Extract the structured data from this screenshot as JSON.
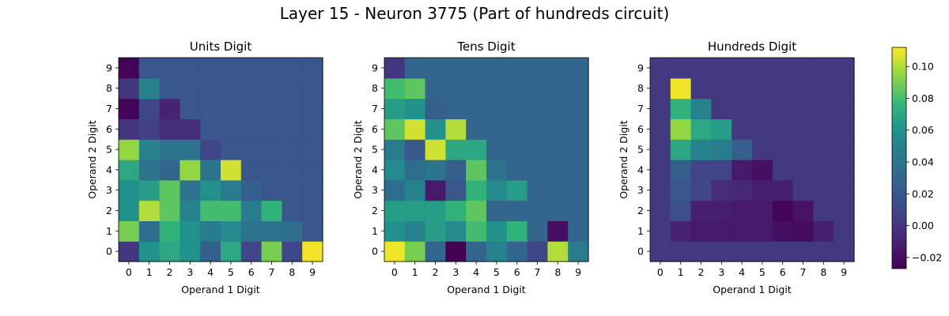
{
  "figure": {
    "title": "Layer 15 - Neuron 3775 (Part of hundreds circuit)"
  },
  "chart_data": [
    {
      "type": "heatmap",
      "title": "Units Digit",
      "xlabel": "Operand 1 Digit",
      "ylabel": "Operand 2 Digit",
      "x_ticks": [
        "0",
        "1",
        "2",
        "3",
        "4",
        "5",
        "6",
        "7",
        "8",
        "9"
      ],
      "y_ticks": [
        "0",
        "1",
        "2",
        "3",
        "4",
        "5",
        "6",
        "7",
        "8",
        "9"
      ],
      "origin": "lower",
      "colormap": "viridis",
      "vmin": -0.027,
      "vmax": 0.112,
      "z_rows_y0_to_y9": [
        [
          0.0,
          0.06,
          0.07,
          0.06,
          0.025,
          0.07,
          0.01,
          0.09,
          0.01,
          0.11
        ],
        [
          0.09,
          0.035,
          0.075,
          0.06,
          0.045,
          0.055,
          0.04,
          0.04,
          0.035,
          0.02
        ],
        [
          0.06,
          0.1,
          0.085,
          0.05,
          0.08,
          0.08,
          0.045,
          0.075,
          0.02,
          0.02
        ],
        [
          0.06,
          0.065,
          0.085,
          0.04,
          0.06,
          0.045,
          0.025,
          0.02,
          0.02,
          0.02
        ],
        [
          0.07,
          0.04,
          0.03,
          0.095,
          0.04,
          0.105,
          0.02,
          0.02,
          0.02,
          0.02
        ],
        [
          0.095,
          0.05,
          0.04,
          0.04,
          0.01,
          0.02,
          0.02,
          0.02,
          0.02,
          0.02
        ],
        [
          0.0,
          0.005,
          -0.005,
          -0.005,
          0.02,
          0.02,
          0.02,
          0.02,
          0.02,
          0.02
        ],
        [
          -0.025,
          0.01,
          -0.01,
          0.02,
          0.02,
          0.02,
          0.02,
          0.02,
          0.02,
          0.02
        ],
        [
          0.0,
          0.05,
          0.02,
          0.02,
          0.02,
          0.02,
          0.02,
          0.02,
          0.02,
          0.02
        ],
        [
          -0.025,
          0.02,
          0.02,
          0.02,
          0.02,
          0.02,
          0.02,
          0.02,
          0.02,
          0.02
        ]
      ]
    },
    {
      "type": "heatmap",
      "title": "Tens Digit",
      "xlabel": "Operand 1 Digit",
      "ylabel": "Operand 2 Digit",
      "x_ticks": [
        "0",
        "1",
        "2",
        "3",
        "4",
        "5",
        "6",
        "7",
        "8",
        "9"
      ],
      "y_ticks": [
        "0",
        "1",
        "2",
        "3",
        "4",
        "5",
        "6",
        "7",
        "8",
        "9"
      ],
      "origin": "lower",
      "colormap": "viridis",
      "vmin": -0.027,
      "vmax": 0.112,
      "z_rows_y0_to_y9": [
        [
          0.11,
          0.09,
          0.03,
          -0.027,
          0.03,
          0.05,
          0.03,
          0.01,
          0.1,
          0.045
        ],
        [
          0.06,
          0.05,
          0.065,
          0.055,
          0.08,
          0.06,
          0.075,
          0.03,
          -0.02,
          0.03
        ],
        [
          0.065,
          0.065,
          0.065,
          0.075,
          0.085,
          0.03,
          0.03,
          0.03,
          0.03,
          0.03
        ],
        [
          0.035,
          0.05,
          -0.015,
          0.02,
          0.075,
          0.055,
          0.065,
          0.03,
          0.03,
          0.03
        ],
        [
          0.055,
          0.035,
          0.04,
          0.025,
          0.085,
          0.04,
          0.03,
          0.03,
          0.03,
          0.03
        ],
        [
          0.045,
          0.02,
          0.105,
          0.07,
          0.07,
          0.03,
          0.03,
          0.03,
          0.03,
          0.03
        ],
        [
          0.085,
          0.105,
          0.06,
          0.1,
          0.03,
          0.03,
          0.03,
          0.03,
          0.03,
          0.03
        ],
        [
          0.065,
          0.06,
          0.025,
          0.03,
          0.03,
          0.03,
          0.03,
          0.03,
          0.03,
          0.03
        ],
        [
          0.08,
          0.085,
          0.03,
          0.03,
          0.03,
          0.03,
          0.03,
          0.03,
          0.03,
          0.03
        ],
        [
          0.0,
          0.03,
          0.03,
          0.03,
          0.03,
          0.03,
          0.03,
          0.03,
          0.03,
          0.03
        ]
      ]
    },
    {
      "type": "heatmap",
      "title": "Hundreds Digit",
      "xlabel": "Operand 1 Digit",
      "ylabel": "Operand 2 Digit",
      "x_ticks": [
        "0",
        "1",
        "2",
        "3",
        "4",
        "5",
        "6",
        "7",
        "8",
        "9"
      ],
      "y_ticks": [
        "0",
        "1",
        "2",
        "3",
        "4",
        "5",
        "6",
        "7",
        "8",
        "9"
      ],
      "origin": "lower",
      "colormap": "viridis",
      "vmin": -0.027,
      "vmax": 0.112,
      "colorbar_ticks": [
        -0.02,
        0.0,
        0.02,
        0.04,
        0.06,
        0.08,
        0.1
      ],
      "colorbar_labels": [
        "−0.02",
        "0.00",
        "0.02",
        "0.04",
        "0.06",
        "0.08",
        "0.10"
      ],
      "z_rows_y0_to_y9": [
        [
          0.002,
          0.002,
          0.002,
          0.002,
          0.002,
          0.002,
          0.002,
          0.002,
          0.002,
          0.002
        ],
        [
          0.002,
          -0.01,
          -0.015,
          -0.015,
          -0.015,
          -0.015,
          -0.02,
          -0.022,
          -0.012,
          0.002
        ],
        [
          0.002,
          0.015,
          -0.012,
          -0.012,
          -0.015,
          -0.015,
          -0.025,
          -0.018,
          0.002,
          0.002
        ],
        [
          0.002,
          0.02,
          0.01,
          -0.005,
          -0.008,
          -0.012,
          -0.012,
          0.002,
          0.002,
          0.002
        ],
        [
          0.002,
          0.025,
          0.008,
          0.008,
          -0.015,
          -0.02,
          0.002,
          0.002,
          0.002,
          0.002
        ],
        [
          0.002,
          0.07,
          0.05,
          0.045,
          0.025,
          0.002,
          0.002,
          0.002,
          0.002,
          0.002
        ],
        [
          0.002,
          0.095,
          0.07,
          0.065,
          0.002,
          0.002,
          0.002,
          0.002,
          0.002,
          0.002
        ],
        [
          0.002,
          0.075,
          0.05,
          0.002,
          0.002,
          0.002,
          0.002,
          0.002,
          0.002,
          0.002
        ],
        [
          0.002,
          0.11,
          0.002,
          0.002,
          0.002,
          0.002,
          0.002,
          0.002,
          0.002,
          0.002
        ],
        [
          0.002,
          0.002,
          0.002,
          0.002,
          0.002,
          0.002,
          0.002,
          0.002,
          0.002,
          0.002
        ]
      ]
    }
  ]
}
